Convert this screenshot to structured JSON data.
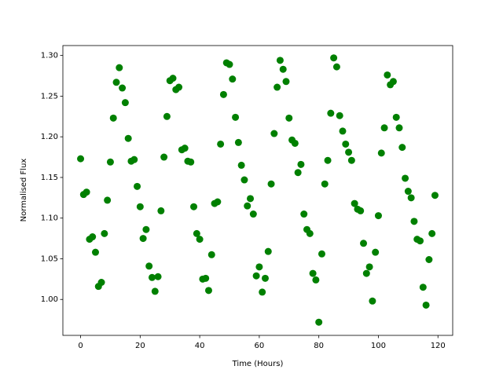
{
  "chart_data": {
    "type": "scatter",
    "xlabel": "Time (Hours)",
    "ylabel": "Normalised Flux",
    "color": "#008000",
    "grid": false,
    "x": [
      0,
      1,
      2,
      3,
      4,
      5,
      6,
      7,
      8,
      9,
      10,
      11,
      12,
      13,
      14,
      15,
      16,
      17,
      18,
      19,
      20,
      21,
      22,
      23,
      24,
      25,
      26,
      27,
      28,
      29,
      30,
      31,
      32,
      33,
      34,
      35,
      36,
      37,
      38,
      39,
      40,
      41,
      42,
      43,
      44,
      45,
      46,
      47,
      48,
      49,
      50,
      51,
      52,
      53,
      54,
      55,
      56,
      57,
      58,
      59,
      60,
      61,
      62,
      63,
      64,
      65,
      66,
      67,
      68,
      69,
      70,
      71,
      72,
      73,
      74,
      75,
      76,
      77,
      78,
      79,
      80,
      81,
      82,
      83,
      84,
      85,
      86,
      87,
      88,
      89,
      90,
      91,
      92,
      93,
      94,
      95,
      96,
      97,
      98,
      99,
      100,
      101,
      102,
      103,
      104,
      105,
      106,
      107,
      108,
      109,
      110,
      111,
      112,
      113,
      114,
      115,
      116,
      117,
      118,
      119
    ],
    "values": [
      1.173,
      1.129,
      1.132,
      1.074,
      1.077,
      1.058,
      1.016,
      1.021,
      1.081,
      1.122,
      1.169,
      1.223,
      1.267,
      1.285,
      1.26,
      1.242,
      1.198,
      1.17,
      1.172,
      1.139,
      1.114,
      1.075,
      1.086,
      1.041,
      1.027,
      1.01,
      1.028,
      1.109,
      1.175,
      1.225,
      1.269,
      1.272,
      1.258,
      1.261,
      1.184,
      1.186,
      1.17,
      1.169,
      1.114,
      1.081,
      1.074,
      1.025,
      1.026,
      1.011,
      1.055,
      1.118,
      1.12,
      1.191,
      1.252,
      1.291,
      1.289,
      1.271,
      1.224,
      1.193,
      1.165,
      1.147,
      1.115,
      1.124,
      1.105,
      1.029,
      1.04,
      1.009,
      1.026,
      1.059,
      1.142,
      1.204,
      1.261,
      1.294,
      1.283,
      1.268,
      1.223,
      1.196,
      1.192,
      1.156,
      1.166,
      1.105,
      1.086,
      1.081,
      1.032,
      1.024,
      0.972,
      1.056,
      1.142,
      1.171,
      1.229,
      1.297,
      1.286,
      1.226,
      1.207,
      1.191,
      1.181,
      1.171,
      1.118,
      1.111,
      1.109,
      1.069,
      1.032,
      1.04,
      0.998,
      1.058,
      1.103,
      1.18,
      1.211,
      1.276,
      1.264,
      1.268,
      1.224,
      1.211,
      1.187,
      1.149,
      1.133,
      1.125,
      1.096,
      1.074,
      1.072,
      1.015,
      0.993,
      1.049,
      1.081,
      1.128
    ],
    "xlim": [
      -5.95,
      124.95
    ],
    "xticks": [
      0,
      20,
      40,
      60,
      80,
      100,
      120
    ],
    "ylim": [
      0.9558,
      1.3122
    ],
    "yticks": [
      {
        "value": 1.0,
        "label": "1.00"
      },
      {
        "value": 1.05,
        "label": "1.05"
      },
      {
        "value": 1.1,
        "label": "1.10"
      },
      {
        "value": 1.15,
        "label": "1.15"
      },
      {
        "value": 1.2,
        "label": "1.20"
      },
      {
        "value": 1.25,
        "label": "1.25"
      },
      {
        "value": 1.3,
        "label": "1.30"
      }
    ]
  }
}
